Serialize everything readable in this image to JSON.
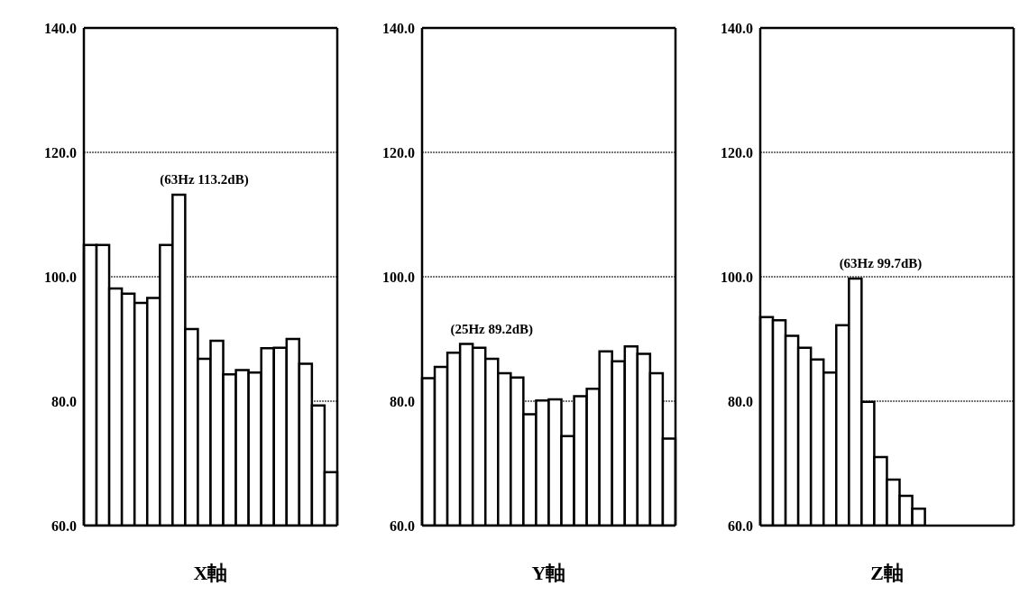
{
  "chart_data": [
    {
      "type": "bar",
      "xlabel": "X軸",
      "categories": [
        null,
        null,
        null,
        null,
        null,
        null,
        null,
        null,
        null,
        null,
        null,
        null,
        null,
        null,
        null,
        null,
        null,
        null,
        null,
        null
      ],
      "values": [
        105.1,
        105.1,
        98.1,
        97.3,
        95.8,
        96.6,
        105.1,
        113.2,
        91.6,
        86.8,
        89.7,
        84.3,
        85.0,
        84.6,
        88.5,
        88.6,
        90.0,
        86.0,
        79.3,
        68.6
      ],
      "color": "#ffffff",
      "ylim": [
        60,
        140
      ],
      "yticks": [
        {
          "value": 60,
          "label": "60.0"
        },
        {
          "value": 80,
          "label": "80.0"
        },
        {
          "value": 100,
          "label": "100.0"
        },
        {
          "value": 120,
          "label": "120.0"
        },
        {
          "value": 140,
          "label": "140.0"
        }
      ],
      "grid": "y",
      "annotations": [
        "(63Hz  113.2dB)"
      ]
    },
    {
      "type": "bar",
      "xlabel": "Y軸",
      "categories": [
        null,
        null,
        null,
        null,
        null,
        null,
        null,
        null,
        null,
        null,
        null,
        null,
        null,
        null,
        null,
        null,
        null,
        null,
        null,
        null
      ],
      "values": [
        83.7,
        85.5,
        87.8,
        89.2,
        88.6,
        86.8,
        84.5,
        83.8,
        77.9,
        80.1,
        80.3,
        74.4,
        80.8,
        82.0,
        88.0,
        86.4,
        88.8,
        87.6,
        84.5,
        74.0
      ],
      "color": "#ffffff",
      "ylim": [
        60,
        140
      ],
      "yticks": [
        {
          "value": 60,
          "label": "60.0"
        },
        {
          "value": 80,
          "label": "80.0"
        },
        {
          "value": 100,
          "label": "100.0"
        },
        {
          "value": 120,
          "label": "120.0"
        },
        {
          "value": 140,
          "label": "140.0"
        }
      ],
      "grid": "y",
      "annotations": [
        "(25Hz  89.2dB)"
      ]
    },
    {
      "type": "bar",
      "xlabel": "Z軸",
      "categories": [
        null,
        null,
        null,
        null,
        null,
        null,
        null,
        null,
        null,
        null,
        null,
        null,
        null,
        null,
        null,
        null,
        null,
        null,
        null,
        null
      ],
      "values": [
        93.5,
        93.0,
        90.5,
        88.6,
        86.7,
        84.6,
        92.2,
        99.7,
        79.9,
        71.0,
        67.4,
        64.8,
        62.7,
        null,
        null,
        null,
        null,
        null,
        null,
        null
      ],
      "color": "#ffffff",
      "ylim": [
        60,
        140
      ],
      "yticks": [
        {
          "value": 60,
          "label": "60.0"
        },
        {
          "value": 80,
          "label": "80.0"
        },
        {
          "value": 100,
          "label": "100.0"
        },
        {
          "value": 120,
          "label": "120.0"
        },
        {
          "value": 140,
          "label": "140.0"
        }
      ],
      "grid": "y",
      "annotations": [
        "(63Hz  99.7dB)"
      ]
    }
  ]
}
